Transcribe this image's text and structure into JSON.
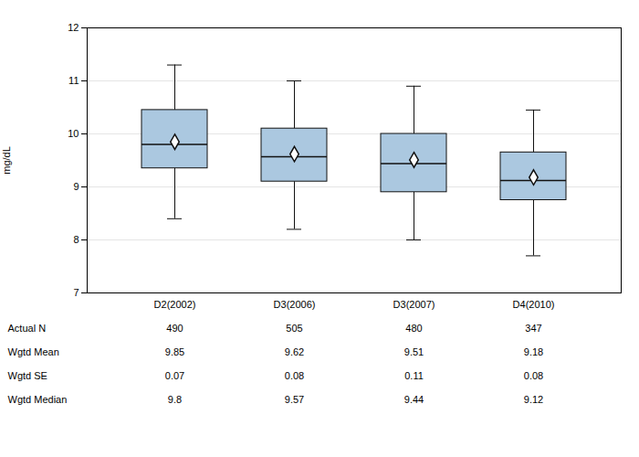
{
  "chart_data": {
    "type": "box",
    "categories": [
      "D2(2002)",
      "D3(2006)",
      "D3(2007)",
      "D4(2010)"
    ],
    "boxes": [
      {
        "whislo": 8.4,
        "q1": 9.35,
        "median": 9.8,
        "q3": 10.45,
        "whishi": 11.3,
        "mean": 9.85
      },
      {
        "whislo": 8.2,
        "q1": 9.1,
        "median": 9.57,
        "q3": 10.1,
        "whishi": 11.0,
        "mean": 9.62
      },
      {
        "whislo": 8.0,
        "q1": 8.9,
        "median": 9.44,
        "q3": 10.0,
        "whishi": 10.9,
        "mean": 9.51
      },
      {
        "whislo": 7.7,
        "q1": 8.75,
        "median": 9.12,
        "q3": 9.65,
        "whishi": 10.45,
        "mean": 9.18
      }
    ],
    "ylabel": "mg/dL",
    "ylim": [
      7,
      12
    ],
    "yticks": [
      7,
      8,
      9,
      10,
      11,
      12
    ],
    "grid": true,
    "color": "#abc8e0",
    "table": {
      "row_labels": [
        "Actual N",
        "Wgtd Mean",
        "Wgtd SE",
        "Wgtd Median"
      ],
      "values": [
        [
          490,
          505,
          480,
          347
        ],
        [
          9.85,
          9.62,
          9.51,
          9.18
        ],
        [
          0.07,
          0.08,
          0.11,
          0.08
        ],
        [
          9.8,
          9.57,
          9.44,
          9.12
        ]
      ]
    }
  }
}
